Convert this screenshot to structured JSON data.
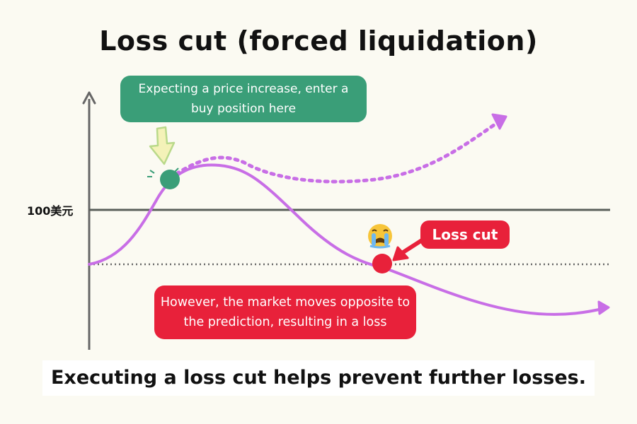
{
  "title": "Loss cut (forced liquidation)",
  "price_level_label": "100美元",
  "callouts": {
    "buy_entry": "Expecting a price increase, enter a buy position here",
    "market_moves": "However, the market moves opposite to the prediction, resulting in a loss",
    "loss_cut": "Loss cut"
  },
  "caption": "Executing a loss cut helps prevent further losses.",
  "colors": {
    "background": "#fbfaf2",
    "curve": "#c86ee6",
    "entry_point": "#3a9e78",
    "loss_point": "#e8213a",
    "axis": "#666666"
  },
  "icons": {
    "entry_arrow": "down-arrow-icon",
    "loss_emoji": "crying-face-icon"
  }
}
